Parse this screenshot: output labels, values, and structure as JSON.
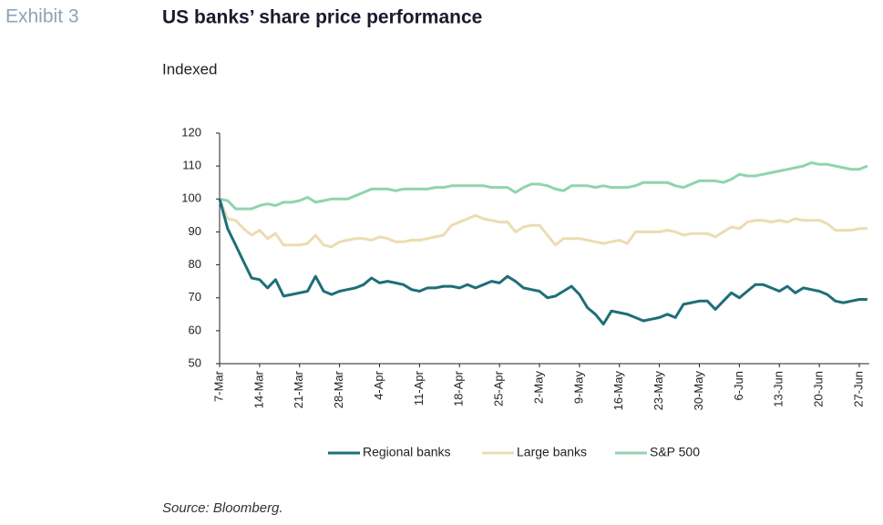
{
  "chart_data": {
    "type": "line",
    "exhibit": "Exhibit 3",
    "title": "US banks’ share price performance",
    "subtitle": "Indexed",
    "source": "Source: Bloomberg.",
    "categories": [
      "7-Mar",
      null,
      null,
      null,
      null,
      "14-Mar",
      null,
      null,
      null,
      null,
      "21-Mar",
      null,
      null,
      null,
      null,
      "28-Mar",
      null,
      null,
      null,
      null,
      "4-Apr",
      null,
      null,
      null,
      null,
      "11-Apr",
      null,
      null,
      null,
      null,
      "18-Apr",
      null,
      null,
      null,
      null,
      "25-Apr",
      null,
      null,
      null,
      null,
      "2-May",
      null,
      null,
      null,
      null,
      "9-May",
      null,
      null,
      null,
      null,
      "16-May",
      null,
      null,
      null,
      null,
      "23-May",
      null,
      null,
      null,
      null,
      "30-May",
      null,
      null,
      null,
      null,
      "6-Jun",
      null,
      null,
      null,
      null,
      "13-Jun",
      null,
      null,
      null,
      null,
      "20-Jun",
      null,
      null,
      null,
      null,
      "27-Jun",
      null
    ],
    "series": [
      {
        "name": "Regional banks",
        "color": "#1e6e78",
        "values": [
          100,
          91,
          86,
          81,
          76,
          75.5,
          73,
          75.5,
          70.5,
          71,
          71.5,
          72,
          76.5,
          72,
          71,
          72,
          72.5,
          73,
          74,
          76,
          74.5,
          75,
          74.5,
          74,
          72.5,
          72,
          73,
          73,
          73.5,
          73.5,
          73,
          74,
          73,
          74,
          75,
          74.5,
          76.5,
          75,
          73,
          72.5,
          72,
          70,
          70.5,
          72,
          73.5,
          71,
          67,
          65,
          62,
          66,
          65.5,
          65,
          64,
          63,
          63.5,
          64,
          65,
          64,
          68,
          68.5,
          69,
          69,
          66.5,
          69,
          71.5,
          70,
          72,
          74,
          74,
          73,
          72,
          73.5,
          71.5,
          73,
          72.5,
          72,
          71,
          69,
          68.5,
          69,
          69.5,
          69.5
        ]
      },
      {
        "name": "Large banks",
        "color": "#ecdcb2",
        "values": [
          100,
          94,
          93.5,
          91,
          89,
          90.5,
          88,
          89.5,
          86,
          86,
          86,
          86.5,
          89,
          86,
          85.5,
          87,
          87.5,
          88,
          88,
          87.5,
          88.5,
          88,
          87,
          87,
          87.5,
          87.5,
          88,
          88.5,
          89,
          92,
          93,
          94,
          95,
          94,
          93.5,
          93,
          93,
          90,
          91.5,
          92,
          92,
          89,
          86,
          88,
          88,
          88,
          87.5,
          87,
          86.5,
          87,
          87.5,
          86.5,
          90,
          90,
          90,
          90,
          90.5,
          90,
          89,
          89.5,
          89.5,
          89.5,
          88.5,
          90,
          91.5,
          91,
          93,
          93.5,
          93.5,
          93,
          93.5,
          93,
          94,
          93.5,
          93.5,
          93.5,
          92.5,
          90.5,
          90.5,
          90.5,
          91,
          91
        ]
      },
      {
        "name": "S&P 500",
        "color": "#8fd4b0",
        "values": [
          100,
          99.5,
          97,
          97,
          97,
          98,
          98.5,
          98,
          99,
          99,
          99.5,
          100.5,
          99,
          99.5,
          100,
          100,
          100,
          101,
          102,
          103,
          103,
          103,
          102.5,
          103,
          103,
          103,
          103,
          103.5,
          103.5,
          104,
          104,
          104,
          104,
          104,
          103.5,
          103.5,
          103.5,
          102,
          103.5,
          104.5,
          104.5,
          104,
          103,
          102.5,
          104,
          104,
          104,
          103.5,
          104,
          103.5,
          103.5,
          103.5,
          104,
          105,
          105,
          105,
          105,
          104,
          103.5,
          104.5,
          105.5,
          105.5,
          105.5,
          105,
          106,
          107.5,
          107,
          107,
          107.5,
          108,
          108.5,
          109,
          109.5,
          110,
          111,
          110.5,
          110.5,
          110,
          109.5,
          109,
          109,
          110
        ]
      }
    ],
    "ylim": [
      50,
      120
    ],
    "yticks": [
      50,
      60,
      70,
      80,
      90,
      100,
      110,
      120
    ]
  }
}
